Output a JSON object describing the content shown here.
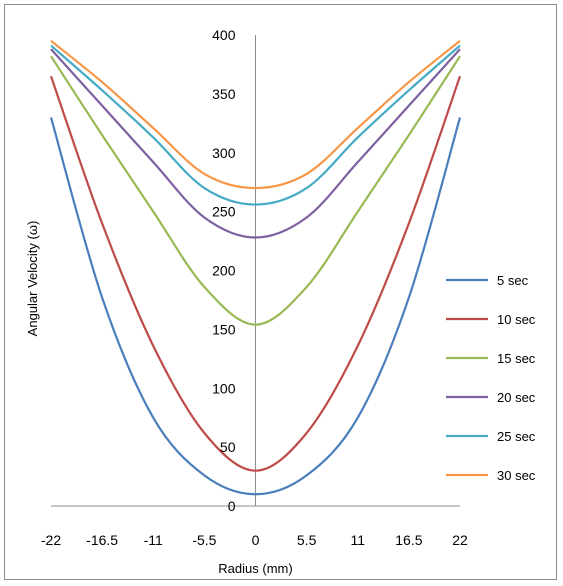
{
  "chart_data": {
    "type": "line",
    "title": "",
    "xlabel": "Radius (mm)",
    "ylabel": "Angular Velocity (ω)",
    "xlim": [
      -22,
      22
    ],
    "ylim": [
      0,
      400
    ],
    "x_ticks": [
      "-22",
      "-16.5",
      "-11",
      "-5.5",
      "0",
      "5.5",
      "11",
      "16.5",
      "22"
    ],
    "y_ticks": [
      "0",
      "50",
      "100",
      "150",
      "200",
      "250",
      "300",
      "350",
      "400"
    ],
    "grid": false,
    "legend_position": "right",
    "series": [
      {
        "name": "5 sec",
        "color": "#4a7ebb",
        "x": [
          -22,
          -16.5,
          -11,
          -5.5,
          0,
          5.5,
          11,
          16.5,
          22
        ],
        "values": [
          330,
          177,
          75,
          26,
          10,
          26,
          75,
          177,
          330
        ]
      },
      {
        "name": "10 sec",
        "color": "#be4b48",
        "x": [
          -22,
          -16.5,
          -11,
          -5.5,
          0,
          5.5,
          11,
          16.5,
          22
        ],
        "values": [
          365,
          240,
          136,
          62,
          30,
          62,
          136,
          240,
          365
        ]
      },
      {
        "name": "15 sec",
        "color": "#98b954",
        "x": [
          -22,
          -16.5,
          -11,
          -5.5,
          0,
          5.5,
          11,
          16.5,
          22
        ],
        "values": [
          382,
          315,
          250,
          186,
          154,
          186,
          250,
          315,
          382
        ]
      },
      {
        "name": "20 sec",
        "color": "#7d60a0",
        "x": [
          -22,
          -16.5,
          -11,
          -5.5,
          0,
          5.5,
          11,
          16.5,
          22
        ],
        "values": [
          388,
          340,
          292,
          245,
          228,
          245,
          292,
          340,
          388
        ]
      },
      {
        "name": "25 sec",
        "color": "#46aac5",
        "x": [
          -22,
          -16.5,
          -11,
          -5.5,
          0,
          5.5,
          11,
          16.5,
          22
        ],
        "values": [
          391,
          353,
          313,
          270,
          256,
          270,
          313,
          353,
          391
        ]
      },
      {
        "name": "30 sec",
        "color": "#f79646",
        "x": [
          -22,
          -16.5,
          -11,
          -5.5,
          0,
          5.5,
          11,
          16.5,
          22
        ],
        "values": [
          395,
          360,
          321,
          282,
          270,
          282,
          321,
          360,
          395
        ]
      }
    ]
  }
}
